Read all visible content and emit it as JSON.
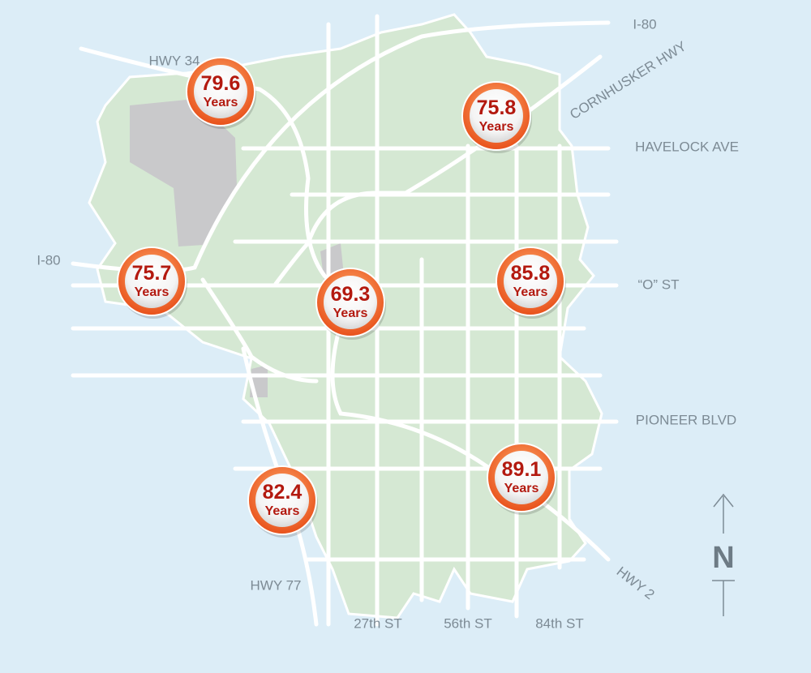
{
  "road_labels": [
    "HWY 34",
    "I-80",
    "CORNHUSKER HWY",
    "HAVELOCK AVE",
    "I-80",
    "“O” ST",
    "PIONEER BLVD",
    "HWY 77",
    "HWY 2",
    "27th ST",
    "56th ST",
    "84th ST"
  ],
  "markers": [
    {
      "value": 79.6,
      "unit": "Years"
    },
    {
      "value": 75.8,
      "unit": "Years"
    },
    {
      "value": 75.7,
      "unit": "Years"
    },
    {
      "value": 69.3,
      "unit": "Years"
    },
    {
      "value": 85.8,
      "unit": "Years"
    },
    {
      "value": 89.1,
      "unit": "Years"
    },
    {
      "value": 82.4,
      "unit": "Years"
    }
  ],
  "compass": "N"
}
